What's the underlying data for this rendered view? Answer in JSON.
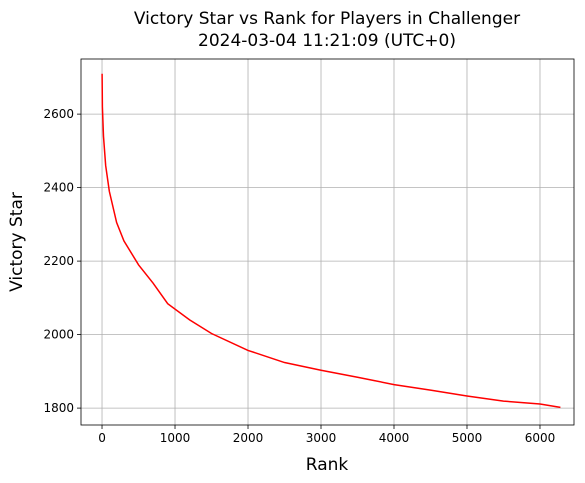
{
  "chart_data": {
    "type": "line",
    "title": "Victory Star vs Rank for Players in Challenger",
    "subtitle": "2024-03-04 11:21:09 (UTC+0)",
    "x_label": "Rank",
    "y_label": "Victory Star",
    "x": [
      1,
      5,
      20,
      50,
      100,
      200,
      300,
      500,
      700,
      900,
      1200,
      1500,
      2000,
      2500,
      3000,
      3500,
      4000,
      4500,
      5000,
      5500,
      6000,
      6280
    ],
    "series": [
      {
        "name": "Victory Star",
        "color": "#ff0000",
        "values": [
          2710,
          2620,
          2540,
          2460,
          2390,
          2305,
          2255,
          2190,
          2140,
          2084,
          2040,
          2003,
          1957,
          1924,
          1903,
          1884,
          1864,
          1849,
          1833,
          1819,
          1811,
          1802
        ]
      }
    ],
    "xlim": [
      -288,
      6466
    ],
    "ylim": [
      1754,
      2750
    ],
    "xticks": [
      0,
      1000,
      2000,
      3000,
      4000,
      5000,
      6000
    ],
    "yticks": [
      1800,
      2000,
      2200,
      2400,
      2600
    ],
    "grid": true
  }
}
